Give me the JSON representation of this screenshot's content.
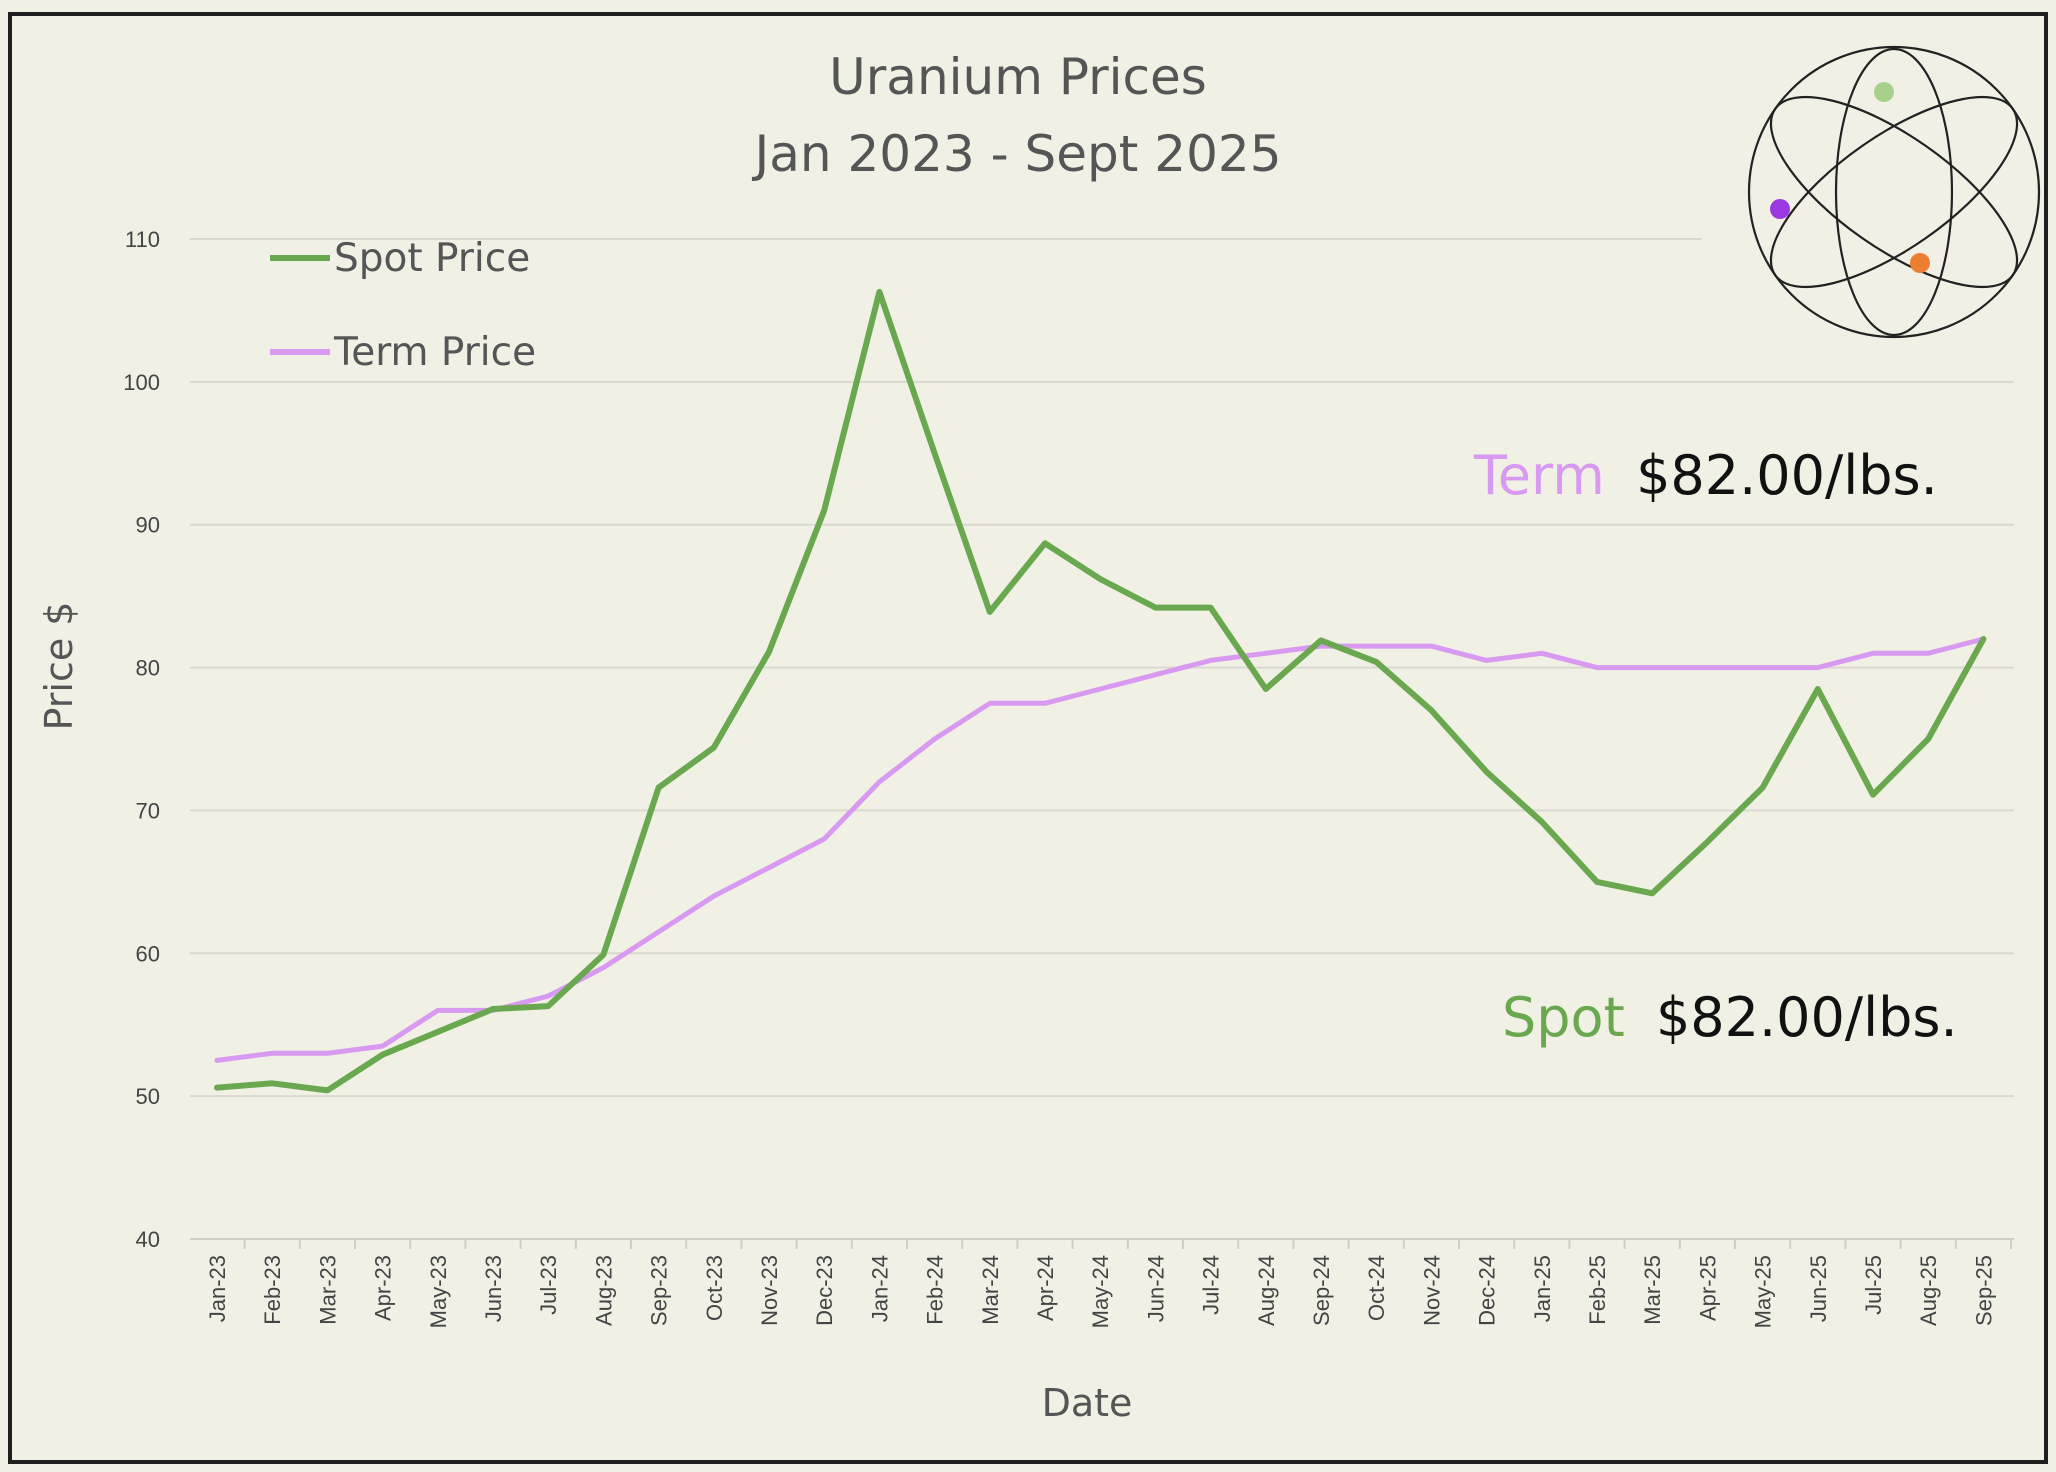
{
  "colors": {
    "background": "#f1f0e5",
    "spot": "#6aa84f",
    "term": "#d89af0",
    "grid": "#d9d9d2",
    "text": "#555555",
    "border": "#1f1f1f"
  },
  "logo": {
    "icon": "atom-icon",
    "dot_colors": [
      "#a8d08d",
      "#9b38e0",
      "#ed7d31"
    ]
  },
  "callouts": {
    "term_label": "Term",
    "term_value": "$82.00/lbs.",
    "spot_label": "Spot",
    "spot_value": "$82.00/lbs."
  },
  "chart_data": {
    "type": "line",
    "title": "Uranium Prices",
    "subtitle": "Jan 2023 - Sept 2025",
    "xlabel": "Date",
    "ylabel": "Price $",
    "ylim": [
      40,
      110
    ],
    "yticks": [
      40,
      50,
      60,
      70,
      80,
      90,
      100,
      110
    ],
    "grid": true,
    "legend_position": "top-left",
    "categories": [
      "Jan-23",
      "Feb-23",
      "Mar-23",
      "Apr-23",
      "May-23",
      "Jun-23",
      "Jul-23",
      "Aug-23",
      "Sep-23",
      "Oct-23",
      "Nov-23",
      "Dec-23",
      "Jan-24",
      "Feb-24",
      "Mar-24",
      "Apr-24",
      "May-24",
      "Jun-24",
      "Jul-24",
      "Aug-24",
      "Sep-24",
      "Oct-24",
      "Nov-24",
      "Dec-24",
      "Jan-25",
      "Feb-25",
      "Mar-25",
      "Apr-25",
      "May-25",
      "Jun-25",
      "Jul-25",
      "Aug-25",
      "Sep-25"
    ],
    "series": [
      {
        "name": "Spot Price",
        "color": "#6aa84f",
        "values": [
          50.6,
          50.9,
          50.4,
          52.9,
          54.5,
          56.1,
          56.3,
          59.9,
          71.6,
          74.4,
          81.1,
          91.0,
          106.3,
          95.0,
          83.9,
          88.7,
          86.2,
          84.2,
          84.2,
          78.5,
          81.9,
          80.4,
          77.0,
          72.7,
          69.2,
          65.0,
          64.2,
          67.8,
          71.6,
          78.5,
          71.1,
          75.0,
          82.0
        ]
      },
      {
        "name": "Term Price",
        "color": "#d89af0",
        "values": [
          52.5,
          53.0,
          53.0,
          53.5,
          56.0,
          56.0,
          57.0,
          59.0,
          61.5,
          64.0,
          66.0,
          68.0,
          72.0,
          75.0,
          77.5,
          77.5,
          78.5,
          79.5,
          80.5,
          81.0,
          81.5,
          81.5,
          81.5,
          80.5,
          81.0,
          80.0,
          80.0,
          80.0,
          80.0,
          80.0,
          81.0,
          81.0,
          82.0
        ]
      }
    ]
  }
}
